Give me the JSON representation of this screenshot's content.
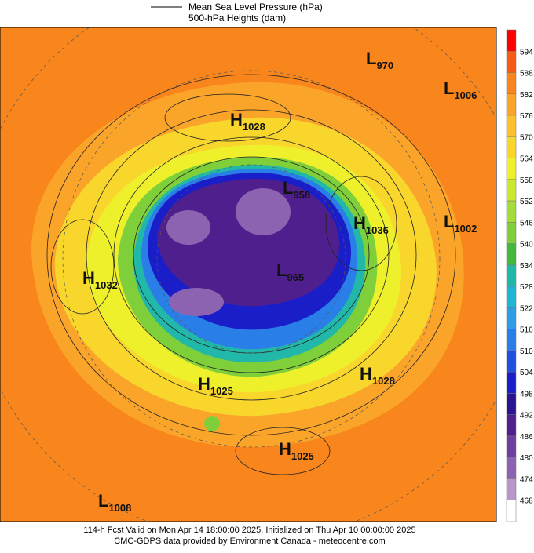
{
  "legend": {
    "line1": "Mean Sea Level Pressure (hPa)",
    "line2": "500-hPa Heights (dam)"
  },
  "colorbar": {
    "top_color": "#ff0000",
    "levels": [
      {
        "value": 594,
        "color": "#f85c14"
      },
      {
        "value": 588,
        "color": "#f9861c"
      },
      {
        "value": 582,
        "color": "#fba42a"
      },
      {
        "value": 576,
        "color": "#fdbf2b"
      },
      {
        "value": 570,
        "color": "#f8d62c"
      },
      {
        "value": 564,
        "color": "#eef02c"
      },
      {
        "value": 558,
        "color": "#c9e82f"
      },
      {
        "value": 552,
        "color": "#a6dc3a"
      },
      {
        "value": 546,
        "color": "#7fcf3a"
      },
      {
        "value": 540,
        "color": "#43b93c"
      },
      {
        "value": 534,
        "color": "#22b8a9"
      },
      {
        "value": 528,
        "color": "#1fb6d4"
      },
      {
        "value": 522,
        "color": "#2c9ee5"
      },
      {
        "value": 516,
        "color": "#2a7ee8"
      },
      {
        "value": 510,
        "color": "#1f4fe0"
      },
      {
        "value": 504,
        "color": "#1a1ec9"
      },
      {
        "value": 498,
        "color": "#2a148f"
      },
      {
        "value": 492,
        "color": "#4f1f8e"
      },
      {
        "value": 486,
        "color": "#6e3e9e"
      },
      {
        "value": 480,
        "color": "#8c63b0"
      },
      {
        "value": 474,
        "color": "#b896cc"
      },
      {
        "value": 468,
        "color": "#ffffff"
      }
    ]
  },
  "pressure_centers": [
    {
      "type": "H",
      "value": 1028
    },
    {
      "type": "L",
      "value": 970
    },
    {
      "type": "L",
      "value": 1006
    },
    {
      "type": "L",
      "value": 958
    },
    {
      "type": "H",
      "value": 1036
    },
    {
      "type": "L",
      "value": 1002
    },
    {
      "type": "H",
      "value": 1032
    },
    {
      "type": "L",
      "value": 965
    },
    {
      "type": "H",
      "value": 1028
    },
    {
      "type": "H",
      "value": 1025
    },
    {
      "type": "H",
      "value": 1025
    },
    {
      "type": "L",
      "value": 1008
    }
  ],
  "footer": {
    "line1": "114-h Fcst Valid on Mon Apr 14 18:00:00 2025, Initialized on Thu Apr 10 00:00:00 2025",
    "line2": "CMC-GDPS data provided by Environment Canada - meteocentre.com"
  }
}
